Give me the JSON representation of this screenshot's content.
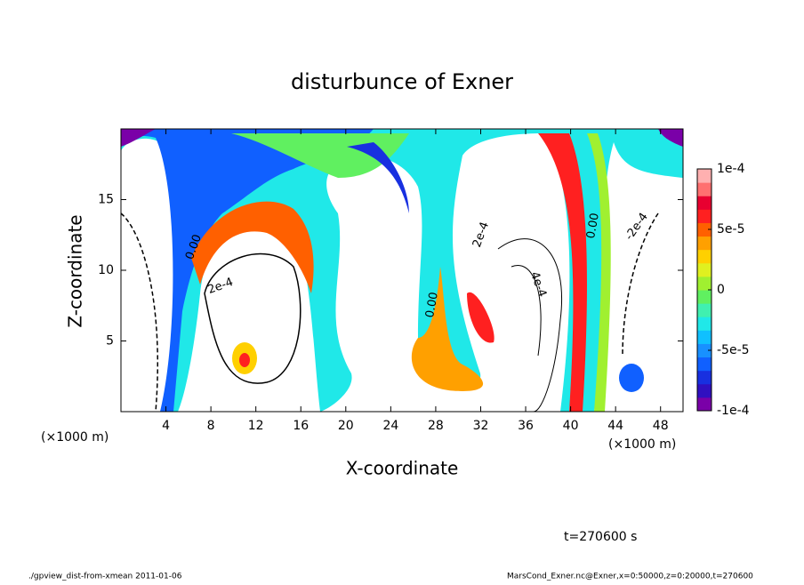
{
  "chart_data": {
    "type": "contour",
    "title": "disturbunce of Exner",
    "x_label": "X-coordinate",
    "y_label": "Z-coordinate",
    "x_unit": "(×1000 m)",
    "y_unit": "(×1000 m)",
    "xlim": [
      0,
      50
    ],
    "xticks": [
      4,
      8,
      12,
      16,
      20,
      24,
      28,
      32,
      36,
      40,
      44,
      48
    ],
    "ylim": [
      0,
      20
    ],
    "yticks": [
      5,
      10,
      15
    ],
    "colorbar": {
      "lim": [
        -0.0001,
        0.0001
      ],
      "ticks": [
        {
          "value": 0.0001,
          "label": "1e-4"
        },
        {
          "value": 5e-05,
          "label": "5e-5"
        },
        0,
        {
          "value": -5e-05,
          "label": "-5e-5"
        },
        {
          "value": -0.0001,
          "label": "-1e-4"
        }
      ],
      "colors": [
        "#7a00a8",
        "#3010c0",
        "#1830e0",
        "#1060ff",
        "#1890ff",
        "#10c0ff",
        "#20e8e8",
        "#40f0b0",
        "#60f060",
        "#a0f030",
        "#e0f020",
        "#ffd000",
        "#ffa000",
        "#ff6000",
        "#ff2020",
        "#e80030",
        "#ff7070",
        "#ffb0b0"
      ]
    },
    "annotations": [
      "0.00",
      "2e-4",
      "0.00",
      "2e-4",
      "4e-4",
      "0.00",
      "-2e-4"
    ],
    "time_label": "t=270600 s",
    "footer_left": "./gpview_dist-from-xmean  2011-01-06",
    "footer_right": "MarsCond_Exner.nc@Exner,x=0:50000,z=0:20000,t=270600"
  }
}
